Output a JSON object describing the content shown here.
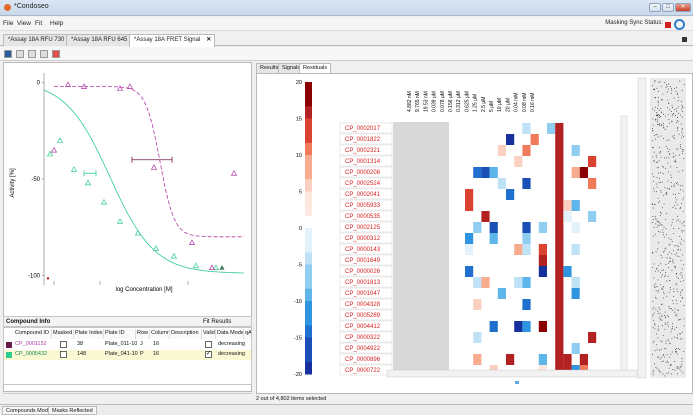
{
  "window": {
    "title": "*Condoseo"
  },
  "menu": [
    "File",
    "View",
    "Fit",
    "Help"
  ],
  "sync": {
    "label": "Masking Sync Status:",
    "color": "#d21f1f"
  },
  "tabs": [
    "*Assay 18A RFU 730",
    "*Assay 18A RFU 645",
    "*Assay 18A FRET Signal"
  ],
  "chart_data": {
    "type": "scatter",
    "ylabel": "Activity [%]",
    "xlabel": "log Concentration [M]",
    "yticks": [
      "0",
      "-50",
      "-100"
    ],
    "series": [
      {
        "color": "#2ecc8f",
        "points": [
          [
            0.03,
            -37
          ],
          [
            0.08,
            -30
          ],
          [
            0.15,
            -45
          ],
          [
            0.22,
            -52
          ],
          [
            0.3,
            -62
          ],
          [
            0.38,
            -72
          ],
          [
            0.47,
            -78
          ],
          [
            0.56,
            -86
          ],
          [
            0.65,
            -90
          ],
          [
            0.76,
            -95
          ],
          [
            0.86,
            -96
          ]
        ]
      },
      {
        "color": "#b03aa6",
        "points": [
          [
            0.05,
            -35
          ],
          [
            0.12,
            -1
          ],
          [
            0.2,
            -2
          ],
          [
            0.38,
            -3
          ],
          [
            0.43,
            -2
          ],
          [
            0.55,
            -44
          ],
          [
            0.74,
            -83
          ],
          [
            0.84,
            -96
          ],
          [
            0.95,
            -47
          ]
        ]
      }
    ],
    "ylim": [
      -105,
      5
    ]
  },
  "compound_info": {
    "title": "Compound Info",
    "fit_title": "Fit Results",
    "headers": [
      "Compound ID",
      "Masked",
      "Plate Index",
      "Plate ID",
      "Row",
      "Column",
      "Description",
      "Valid",
      "Data Mode",
      "qAC"
    ],
    "rows": [
      {
        "color": "#6b1b4a",
        "id": "CP_0001152",
        "masked": false,
        "index": "38",
        "plate": "Plate_011-10",
        "row": "J",
        "col": "16",
        "valid": false,
        "mode": "decreasing"
      },
      {
        "color": "#2ecc8f",
        "id": "CP_0005432",
        "masked": false,
        "index": "148",
        "plate": "Plate_041-10",
        "row": "P",
        "col": "16",
        "valid": true,
        "mode": "decreasing"
      }
    ]
  },
  "bottom_tabs": [
    "Compounds Mode",
    "Masks Reflected"
  ],
  "right_tabs": [
    "Results",
    "Signals",
    "Residuals"
  ],
  "heatmap": {
    "scale": [
      "20",
      "15",
      "10",
      "5",
      "0",
      "-5",
      "-10",
      "-15",
      "-20"
    ],
    "concentrations": [
      "4.882 nM",
      "9.765 nM",
      "19.53 nM",
      "0.039 µM",
      "0.078 µM",
      "0.156 µM",
      "0.312 µM",
      "0.625 µM",
      "1.25 µM",
      "2.5 µM",
      "5 µM",
      "10 µM",
      "20 µM",
      "0.04 mM",
      "0.08 mM",
      "0.16 mM"
    ],
    "compounds": [
      "CP_0002017",
      "CP_0001822",
      "CP_0002321",
      "CP_0001314",
      "CP_0000208",
      "CP_0002524",
      "CP_0002041",
      "CP_0005933",
      "CP_0000535",
      "CP_0002125",
      "CP_0000312",
      "CP_0000143",
      "CP_0001649",
      "CP_0000026",
      "CP_0001813",
      "CP_0001047",
      "CP_0004328",
      "CP_0005289",
      "CP_0004412",
      "CP_0000322",
      "CP_0004922",
      "CP_0000896",
      "CP_0000722"
    ]
  },
  "status": "2 out of 4,802 items selected"
}
